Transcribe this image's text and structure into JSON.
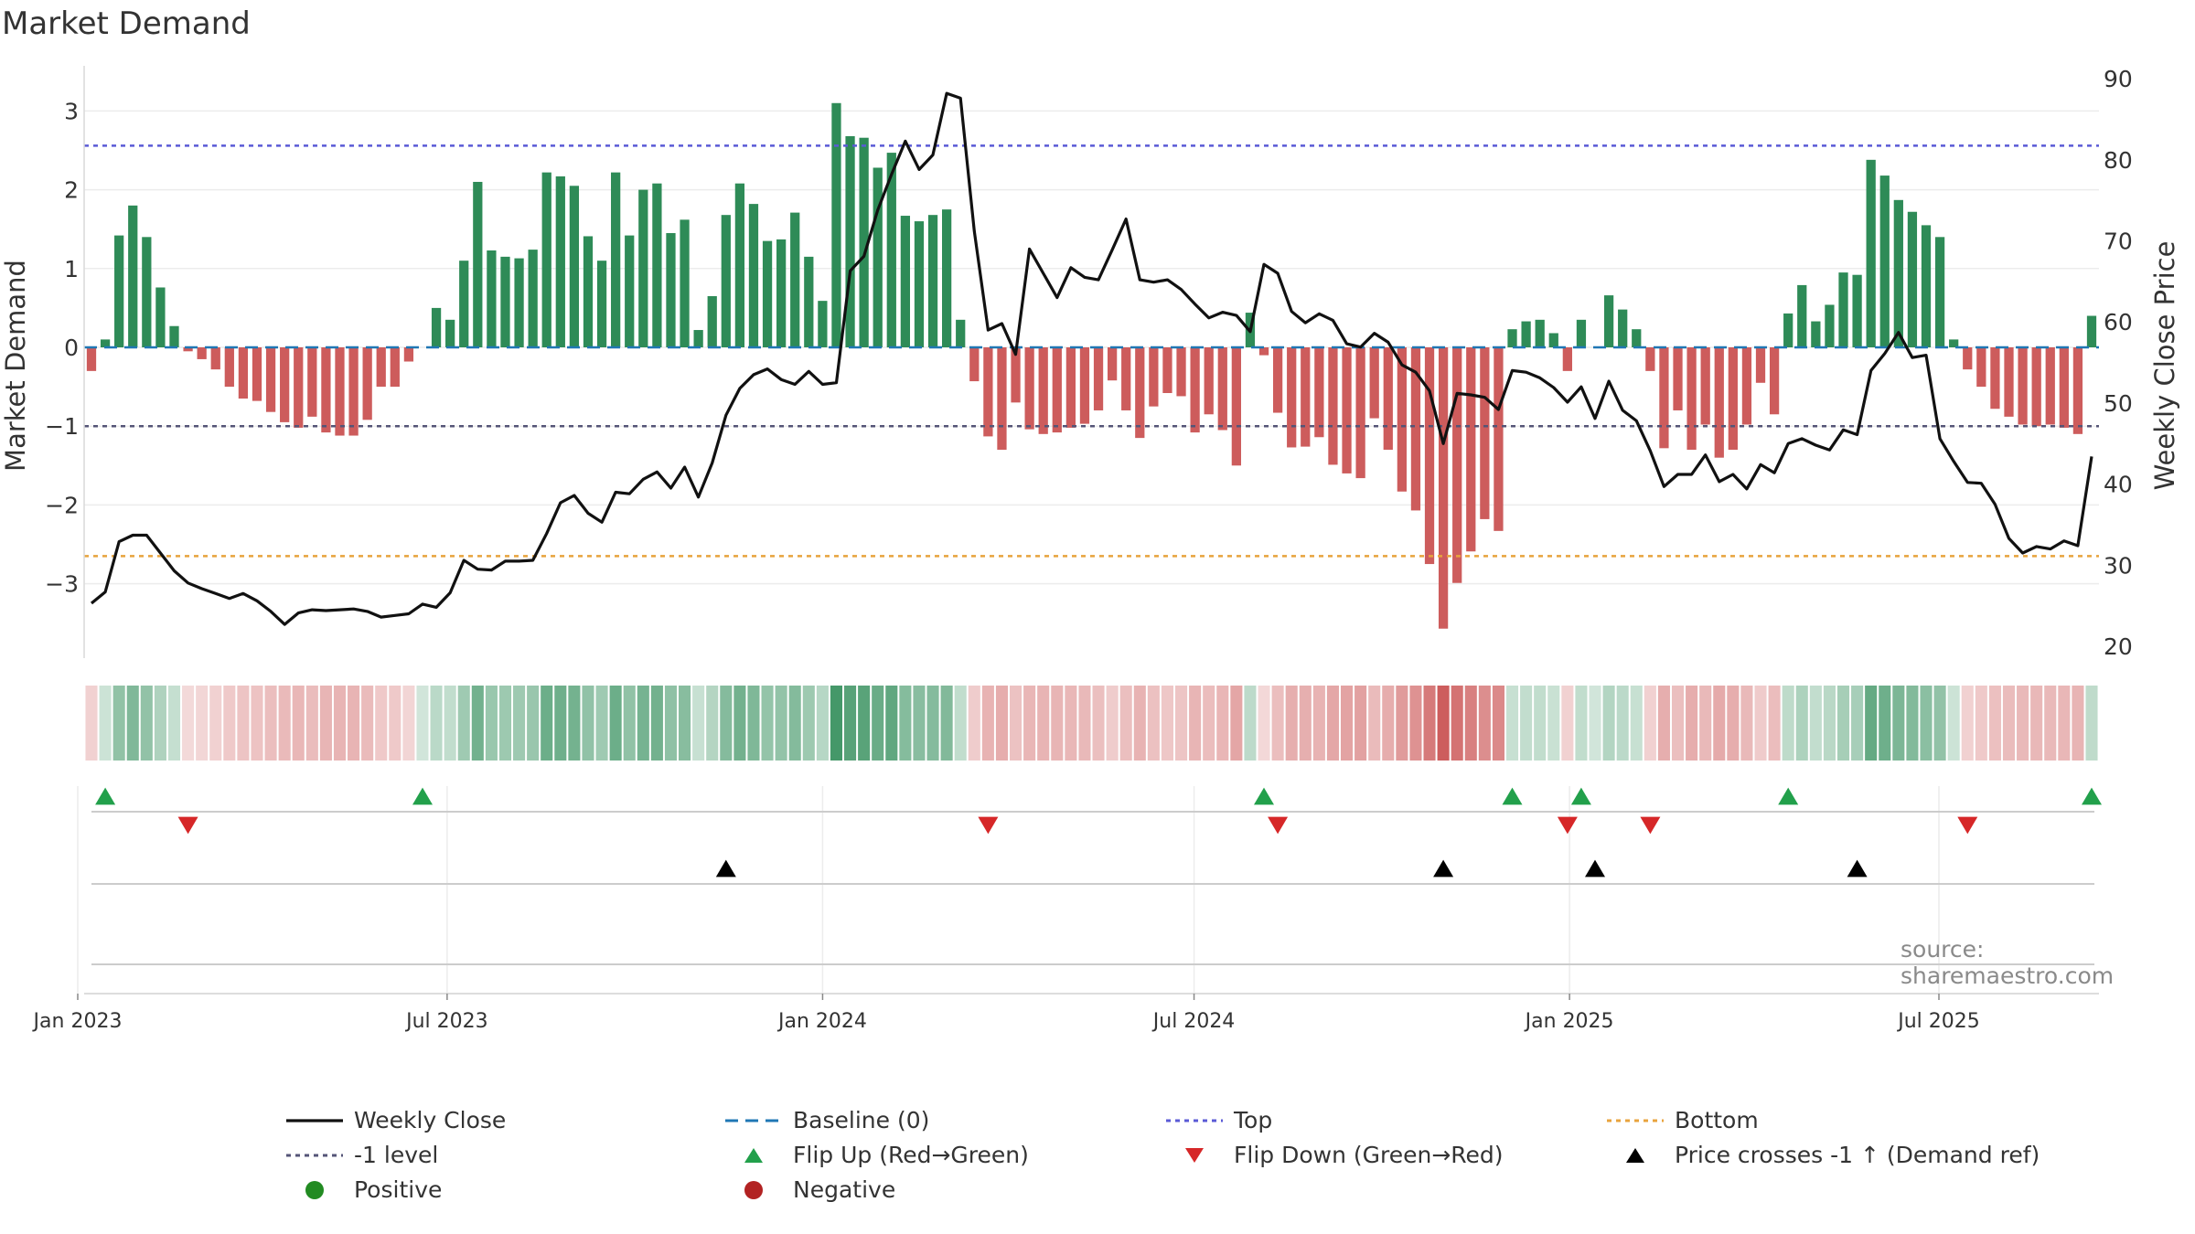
{
  "title": "Market Demand",
  "source": "source: sharemaestro.com",
  "colors": {
    "positive_bar": "#2e8b57",
    "negative_bar": "#cd5c5c",
    "close_line": "#111111",
    "baseline": "#1f77b4",
    "top_line": "#5a5ad6",
    "bottom_line": "#e8a33d",
    "level_line": "#555577",
    "flip_up": "#22a04b",
    "flip_down": "#d62728",
    "cross": "#000000",
    "positive_dot": "#228b22",
    "negative_dot": "#b22222"
  },
  "chart_data": {
    "type": "bar+line",
    "ylabel_left": "Market Demand",
    "ylabel_right": "Weekly Close Price",
    "y_left_ticks": [
      "3",
      "2",
      "1",
      "0",
      "−1",
      "−2",
      "−3"
    ],
    "y_right_ticks": [
      "90",
      "80",
      "70",
      "60",
      "50",
      "40",
      "30",
      "20"
    ],
    "ylim_left": [
      -3.9,
      3.4
    ],
    "ylim_right": [
      19,
      91
    ],
    "x_start": "2022-12-26",
    "x_end": "2025-10-06",
    "x_ticks": [
      {
        "label": "Jan 2023",
        "date": "2023-01-01"
      },
      {
        "label": "Jul 2023",
        "date": "2023-07-01"
      },
      {
        "label": "Jan 2024",
        "date": "2024-01-01"
      },
      {
        "label": "Jul 2024",
        "date": "2024-07-01"
      },
      {
        "label": "Jan 2025",
        "date": "2025-01-01"
      },
      {
        "label": "Jul 2025",
        "date": "2025-07-01"
      }
    ],
    "top_level": 2.56,
    "bottom_level": -2.65,
    "neg_level": -1.0,
    "demand": [
      -0.3,
      0.1,
      1.42,
      1.8,
      1.4,
      0.76,
      0.27,
      -0.05,
      -0.15,
      -0.28,
      -0.5,
      -0.65,
      -0.68,
      -0.82,
      -0.95,
      -1.02,
      -0.88,
      -1.08,
      -1.12,
      -1.12,
      -0.92,
      -0.5,
      -0.5,
      -0.18,
      0,
      0.5,
      0.35,
      1.1,
      2.1,
      1.23,
      1.15,
      1.13,
      1.24,
      2.22,
      2.17,
      2.05,
      1.41,
      1.1,
      2.22,
      1.42,
      2.0,
      2.08,
      1.45,
      1.62,
      0.22,
      0.65,
      1.68,
      2.08,
      1.82,
      1.35,
      1.37,
      1.71,
      1.15,
      0.59,
      3.1,
      2.68,
      2.66,
      2.28,
      2.47,
      1.67,
      1.6,
      1.68,
      1.75,
      0.35,
      -0.43,
      -1.13,
      -1.3,
      -0.7,
      -1.04,
      -1.1,
      -1.08,
      -1.02,
      -0.97,
      -0.8,
      -0.42,
      -0.8,
      -1.15,
      -0.75,
      -0.58,
      -0.62,
      -1.08,
      -0.85,
      -1.05,
      -1.5,
      0.44,
      -0.1,
      -0.83,
      -1.27,
      -1.26,
      -1.14,
      -1.49,
      -1.6,
      -1.66,
      -0.9,
      -1.3,
      -1.83,
      -2.07,
      -2.75,
      -3.57,
      -2.99,
      -2.59,
      -2.18,
      -2.33,
      0.23,
      0.33,
      0.35,
      0.18,
      -0.3,
      0.35,
      0,
      0.66,
      0.48,
      0.23,
      -0.3,
      -1.28,
      -0.8,
      -1.3,
      -0.98,
      -1.4,
      -1.3,
      -0.98,
      -0.45,
      -0.85,
      0.43,
      0.79,
      0.33,
      0.54,
      0.95,
      0.92,
      2.38,
      2.18,
      1.87,
      1.72,
      1.55,
      1.4,
      0.1,
      -0.28,
      -0.5,
      -0.78,
      -0.88,
      -0.98,
      -1.0,
      -0.98,
      -1.02,
      -1.1,
      0.4
    ],
    "weekly_close": [
      25.3,
      26.7,
      32.9,
      33.7,
      33.7,
      31.5,
      29.3,
      27.8,
      27.1,
      26.5,
      25.9,
      26.5,
      25.6,
      24.3,
      22.7,
      24.1,
      24.5,
      24.4,
      24.5,
      24.6,
      24.3,
      23.6,
      23.8,
      24.0,
      25.2,
      24.8,
      26.6,
      30.6,
      29.5,
      29.4,
      30.5,
      30.5,
      30.6,
      33.9,
      37.7,
      38.6,
      36.4,
      35.3,
      39.0,
      38.8,
      40.6,
      41.5,
      39.5,
      42.1,
      38.4,
      42.6,
      48.5,
      51.8,
      53.5,
      54.2,
      52.9,
      52.3,
      53.9,
      52.3,
      52.5,
      66.3,
      68.1,
      73.8,
      78.2,
      82.3,
      78.8,
      80.6,
      88.2,
      87.6,
      71.2,
      59.0,
      59.8,
      56.0,
      69.0,
      66.0,
      63.0,
      66.7,
      65.5,
      65.2,
      68.9,
      72.7,
      65.2,
      64.9,
      65.2,
      64.0,
      62.2,
      60.5,
      61.2,
      60.8,
      58.8,
      67.1,
      66.0,
      61.3,
      59.9,
      61.0,
      60.2,
      57.3,
      56.9,
      58.6,
      57.5,
      54.7,
      53.8,
      51.5,
      45.0,
      51.2,
      51.0,
      50.7,
      49.2,
      54.0,
      53.8,
      53.1,
      51.9,
      50.1,
      52.0,
      48.1,
      52.7,
      49.1,
      47.8,
      44.1,
      39.7,
      41.2,
      41.2,
      43.6,
      40.3,
      41.2,
      39.4,
      42.4,
      41.4,
      45.0,
      45.6,
      44.8,
      44.2,
      46.7,
      46.1,
      54.0,
      56.1,
      58.7,
      55.6,
      55.9,
      45.6,
      42.8,
      40.2,
      40.1,
      37.5,
      33.3,
      31.5,
      32.3,
      32.0,
      33.0,
      32.4,
      43.4
    ],
    "flip_up_weeks": [
      1,
      24,
      85,
      103,
      108,
      123,
      145
    ],
    "flip_down_weeks": [
      7,
      65,
      86,
      107,
      113,
      136
    ],
    "cross_weeks": [
      46,
      98,
      109,
      128
    ],
    "legend": [
      {
        "key": "close",
        "label": "Weekly Close"
      },
      {
        "key": "baseline",
        "label": "Baseline (0)"
      },
      {
        "key": "top",
        "label": "Top"
      },
      {
        "key": "bottom",
        "label": "Bottom"
      },
      {
        "key": "level",
        "label": "-1 level"
      },
      {
        "key": "flip_up",
        "label": "Flip Up (Red→Green)"
      },
      {
        "key": "flip_down",
        "label": "Flip Down (Green→Red)"
      },
      {
        "key": "cross",
        "label": "Price crosses -1 ↑ (Demand ref)"
      },
      {
        "key": "positive",
        "label": "Positive"
      },
      {
        "key": "negative",
        "label": "Negative"
      }
    ]
  }
}
